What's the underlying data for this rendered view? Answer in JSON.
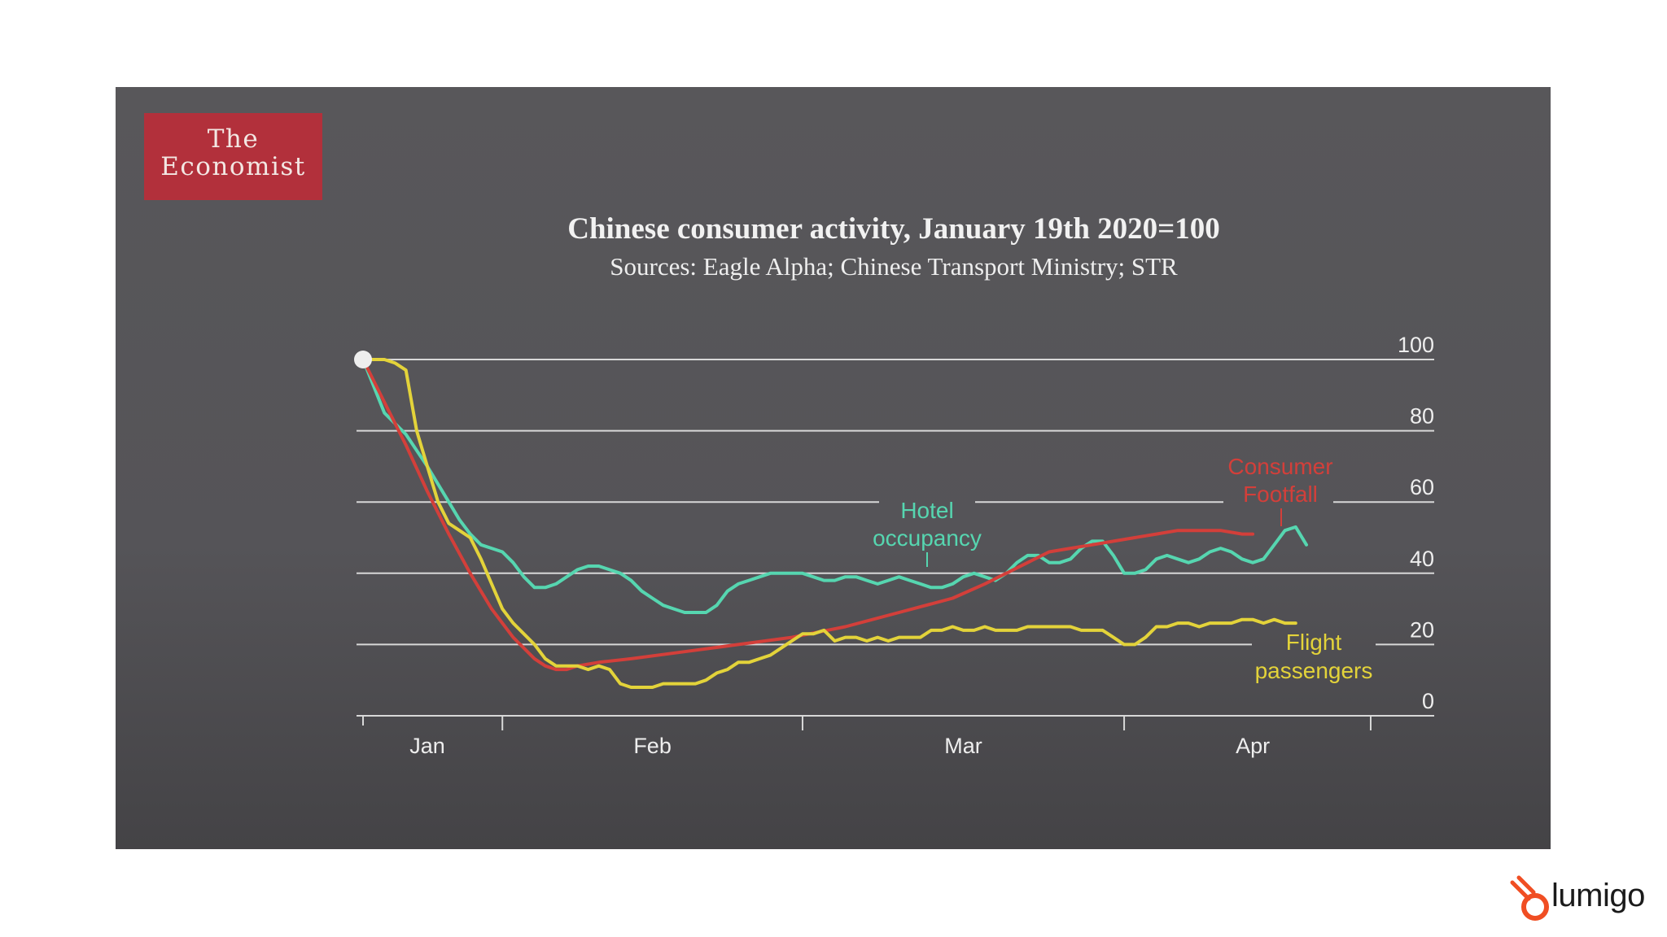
{
  "logo": {
    "line1": "The",
    "line2": "Economist"
  },
  "brand": {
    "name": "lumigo",
    "accent": "#f04e23"
  },
  "colors": {
    "hotel": "#56d6b0",
    "footfall": "#d33f3a",
    "flight": "#e3d33a",
    "grid": "#d8d8d8",
    "start_dot": "#eeeeee"
  },
  "chart_data": {
    "type": "line",
    "title": "Chinese consumer activity, January 19th 2020=100",
    "subtitle": "Sources: Eagle Alpha; Chinese Transport Ministry; STR",
    "ylim": [
      0,
      100
    ],
    "yticks": [
      {
        "value": 100,
        "label": "100"
      },
      {
        "value": 80,
        "label": "80"
      },
      {
        "value": 60,
        "label": "60"
      },
      {
        "value": 40,
        "label": "40"
      },
      {
        "value": 20,
        "label": "20"
      },
      {
        "value": 0,
        "label": "0"
      }
    ],
    "x_unit": "days since January 19th 2020",
    "xlim": [
      -1,
      95
    ],
    "month_boundaries": [
      13,
      41,
      71,
      94
    ],
    "month_labels": [
      {
        "label": "Jan",
        "x": 6
      },
      {
        "label": "Feb",
        "x": 27
      },
      {
        "label": "Mar",
        "x": 56
      },
      {
        "label": "Apr",
        "x": 83
      }
    ],
    "start_point": {
      "x": 0,
      "y": 100
    },
    "series": [
      {
        "name": "Hotel occupancy",
        "label_lines": [
          "Hotel",
          "occupancy"
        ],
        "color": "#56d6b0",
        "points": [
          [
            0,
            100
          ],
          [
            2,
            85
          ],
          [
            4,
            79
          ],
          [
            6,
            70
          ],
          [
            8,
            60
          ],
          [
            9,
            55
          ],
          [
            10,
            51
          ],
          [
            11,
            48
          ],
          [
            12,
            47
          ],
          [
            13,
            46
          ],
          [
            14,
            43
          ],
          [
            15,
            39
          ],
          [
            16,
            36
          ],
          [
            17,
            36
          ],
          [
            18,
            37
          ],
          [
            19,
            39
          ],
          [
            20,
            41
          ],
          [
            21,
            42
          ],
          [
            22,
            42
          ],
          [
            23,
            41
          ],
          [
            24,
            40
          ],
          [
            25,
            38
          ],
          [
            26,
            35
          ],
          [
            27,
            33
          ],
          [
            28,
            31
          ],
          [
            29,
            30
          ],
          [
            30,
            29
          ],
          [
            31,
            29
          ],
          [
            32,
            29
          ],
          [
            33,
            31
          ],
          [
            34,
            35
          ],
          [
            35,
            37
          ],
          [
            36,
            38
          ],
          [
            37,
            39
          ],
          [
            38,
            40
          ],
          [
            39,
            40
          ],
          [
            40,
            40
          ],
          [
            41,
            40
          ],
          [
            42,
            39
          ],
          [
            43,
            38
          ],
          [
            44,
            38
          ],
          [
            45,
            39
          ],
          [
            46,
            39
          ],
          [
            47,
            38
          ],
          [
            48,
            37
          ],
          [
            49,
            38
          ],
          [
            50,
            39
          ],
          [
            51,
            38
          ],
          [
            52,
            37
          ],
          [
            53,
            36
          ],
          [
            54,
            36
          ],
          [
            55,
            37
          ],
          [
            56,
            39
          ],
          [
            57,
            40
          ],
          [
            58,
            39
          ],
          [
            59,
            38
          ],
          [
            60,
            40
          ],
          [
            61,
            43
          ],
          [
            62,
            45
          ],
          [
            63,
            45
          ],
          [
            64,
            43
          ],
          [
            65,
            43
          ],
          [
            66,
            44
          ],
          [
            67,
            47
          ],
          [
            68,
            49
          ],
          [
            69,
            49
          ],
          [
            70,
            45
          ],
          [
            71,
            40
          ],
          [
            72,
            40
          ],
          [
            73,
            41
          ],
          [
            74,
            44
          ],
          [
            75,
            45
          ],
          [
            76,
            44
          ],
          [
            77,
            43
          ],
          [
            78,
            44
          ],
          [
            79,
            46
          ],
          [
            80,
            47
          ],
          [
            81,
            46
          ],
          [
            82,
            44
          ],
          [
            83,
            43
          ],
          [
            84,
            44
          ],
          [
            85,
            48
          ],
          [
            86,
            52
          ],
          [
            87,
            53
          ],
          [
            88,
            48
          ]
        ]
      },
      {
        "name": "Consumer Footfall",
        "label_lines": [
          "Consumer",
          "Footfall"
        ],
        "color": "#d33f3a",
        "points": [
          [
            0,
            100
          ],
          [
            2,
            88
          ],
          [
            4,
            76
          ],
          [
            6,
            63
          ],
          [
            8,
            51
          ],
          [
            10,
            40
          ],
          [
            12,
            30
          ],
          [
            14,
            22
          ],
          [
            16,
            16
          ],
          [
            17,
            14
          ],
          [
            18,
            13
          ],
          [
            19,
            13
          ],
          [
            20,
            14
          ],
          [
            22,
            15
          ],
          [
            25,
            16
          ],
          [
            30,
            18
          ],
          [
            35,
            20
          ],
          [
            40,
            22
          ],
          [
            45,
            25
          ],
          [
            50,
            29
          ],
          [
            55,
            33
          ],
          [
            58,
            37
          ],
          [
            60,
            40
          ],
          [
            62,
            43
          ],
          [
            64,
            46
          ],
          [
            66,
            47
          ],
          [
            68,
            48
          ],
          [
            70,
            49
          ],
          [
            72,
            50
          ],
          [
            74,
            51
          ],
          [
            76,
            52
          ],
          [
            78,
            52
          ],
          [
            80,
            52
          ],
          [
            82,
            51
          ],
          [
            83,
            51
          ]
        ]
      },
      {
        "name": "Flight passengers",
        "label_lines": [
          "Flight",
          "passengers"
        ],
        "color": "#e3d33a",
        "points": [
          [
            0,
            100
          ],
          [
            1,
            100
          ],
          [
            2,
            100
          ],
          [
            3,
            99
          ],
          [
            4,
            97
          ],
          [
            5,
            80
          ],
          [
            6,
            70
          ],
          [
            7,
            60
          ],
          [
            8,
            54
          ],
          [
            9,
            52
          ],
          [
            10,
            50
          ],
          [
            11,
            44
          ],
          [
            12,
            37
          ],
          [
            13,
            30
          ],
          [
            14,
            26
          ],
          [
            15,
            23
          ],
          [
            16,
            20
          ],
          [
            17,
            16
          ],
          [
            18,
            14
          ],
          [
            19,
            14
          ],
          [
            20,
            14
          ],
          [
            21,
            13
          ],
          [
            22,
            14
          ],
          [
            23,
            13
          ],
          [
            24,
            9
          ],
          [
            25,
            8
          ],
          [
            26,
            8
          ],
          [
            27,
            8
          ],
          [
            28,
            9
          ],
          [
            29,
            9
          ],
          [
            30,
            9
          ],
          [
            31,
            9
          ],
          [
            32,
            10
          ],
          [
            33,
            12
          ],
          [
            34,
            13
          ],
          [
            35,
            15
          ],
          [
            36,
            15
          ],
          [
            37,
            16
          ],
          [
            38,
            17
          ],
          [
            39,
            19
          ],
          [
            40,
            21
          ],
          [
            41,
            23
          ],
          [
            42,
            23
          ],
          [
            43,
            24
          ],
          [
            44,
            21
          ],
          [
            45,
            22
          ],
          [
            46,
            22
          ],
          [
            47,
            21
          ],
          [
            48,
            22
          ],
          [
            49,
            21
          ],
          [
            50,
            22
          ],
          [
            51,
            22
          ],
          [
            52,
            22
          ],
          [
            53,
            24
          ],
          [
            54,
            24
          ],
          [
            55,
            25
          ],
          [
            56,
            24
          ],
          [
            57,
            24
          ],
          [
            58,
            25
          ],
          [
            59,
            24
          ],
          [
            60,
            24
          ],
          [
            61,
            24
          ],
          [
            62,
            25
          ],
          [
            63,
            25
          ],
          [
            64,
            25
          ],
          [
            65,
            25
          ],
          [
            66,
            25
          ],
          [
            67,
            24
          ],
          [
            68,
            24
          ],
          [
            69,
            24
          ],
          [
            70,
            22
          ],
          [
            71,
            20
          ],
          [
            72,
            20
          ],
          [
            73,
            22
          ],
          [
            74,
            25
          ],
          [
            75,
            25
          ],
          [
            76,
            26
          ],
          [
            77,
            26
          ],
          [
            78,
            25
          ],
          [
            79,
            26
          ],
          [
            80,
            26
          ],
          [
            81,
            26
          ],
          [
            82,
            27
          ],
          [
            83,
            27
          ],
          [
            84,
            26
          ],
          [
            85,
            27
          ],
          [
            86,
            26
          ],
          [
            87,
            26
          ]
        ]
      }
    ]
  }
}
